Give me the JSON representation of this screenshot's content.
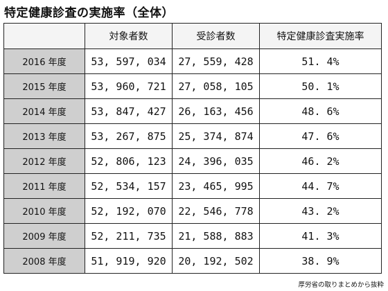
{
  "title": "特定健康診査の実施率（全体）",
  "table": {
    "headers": [
      "",
      "対象者数",
      "受診者数",
      "特定健康診査実施率"
    ],
    "rows": [
      {
        "year": "2016 年度",
        "target": "53, 597, 034",
        "examined": "27, 559, 428",
        "rate": "51. 4%"
      },
      {
        "year": "2015 年度",
        "target": "53, 960, 721",
        "examined": "27, 058, 105",
        "rate": "50. 1%"
      },
      {
        "year": "2014 年度",
        "target": "53, 847, 427",
        "examined": "26, 163, 456",
        "rate": "48. 6%"
      },
      {
        "year": "2013 年度",
        "target": "53, 267, 875",
        "examined": "25, 374, 874",
        "rate": "47. 6%"
      },
      {
        "year": "2012 年度",
        "target": "52, 806, 123",
        "examined": "24, 396, 035",
        "rate": "46. 2%"
      },
      {
        "year": "2011 年度",
        "target": "52, 534, 157",
        "examined": "23, 465, 995",
        "rate": "44. 7%"
      },
      {
        "year": "2010 年度",
        "target": "52, 192, 070",
        "examined": "22, 546, 778",
        "rate": "43. 2%"
      },
      {
        "year": "2009 年度",
        "target": "52, 211, 735",
        "examined": "21, 588, 883",
        "rate": "41. 3%"
      },
      {
        "year": "2008 年度",
        "target": "51, 919, 920",
        "examined": "20, 192, 502",
        "rate": "38. 9%"
      }
    ]
  },
  "source": "厚労省の取りまとめから抜粋"
}
